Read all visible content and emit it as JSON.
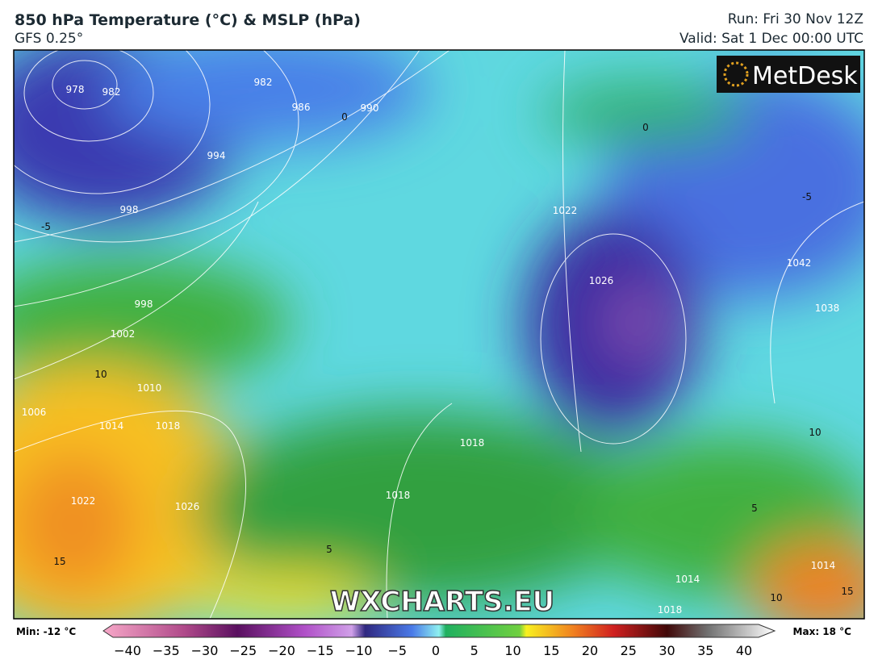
{
  "header": {
    "title": "850 hPa Temperature (°C) & MSLP (hPa)",
    "model": "GFS 0.25°",
    "run": "Run: Fri 30 Nov 12Z",
    "valid": "Valid: Sat 1 Dec 00:00 UTC"
  },
  "logo": "MetDesk",
  "watermark": "WXCHARTS.EU",
  "colorbar": {
    "min_label": "Min: -12 °C",
    "max_label": "Max: 18 °C",
    "ticks": [
      "−40",
      "−35",
      "−30",
      "−25",
      "−20",
      "−15",
      "−10",
      "−5",
      "0",
      "5",
      "10",
      "15",
      "20",
      "25",
      "30",
      "35",
      "40"
    ]
  },
  "isobar_labels": [
    "978",
    "982",
    "982",
    "986",
    "990",
    "994",
    "998",
    "998",
    "1002",
    "1006",
    "1010",
    "1014",
    "1018",
    "1018",
    "1022",
    "1026",
    "1026",
    "1022",
    "1038",
    "1042",
    "1018",
    "1014",
    "1014",
    "1018"
  ],
  "temperature_labels": [
    "-5",
    "0",
    "10",
    "15",
    "5",
    "-5",
    "0",
    "10",
    "15",
    "5",
    "10"
  ]
}
